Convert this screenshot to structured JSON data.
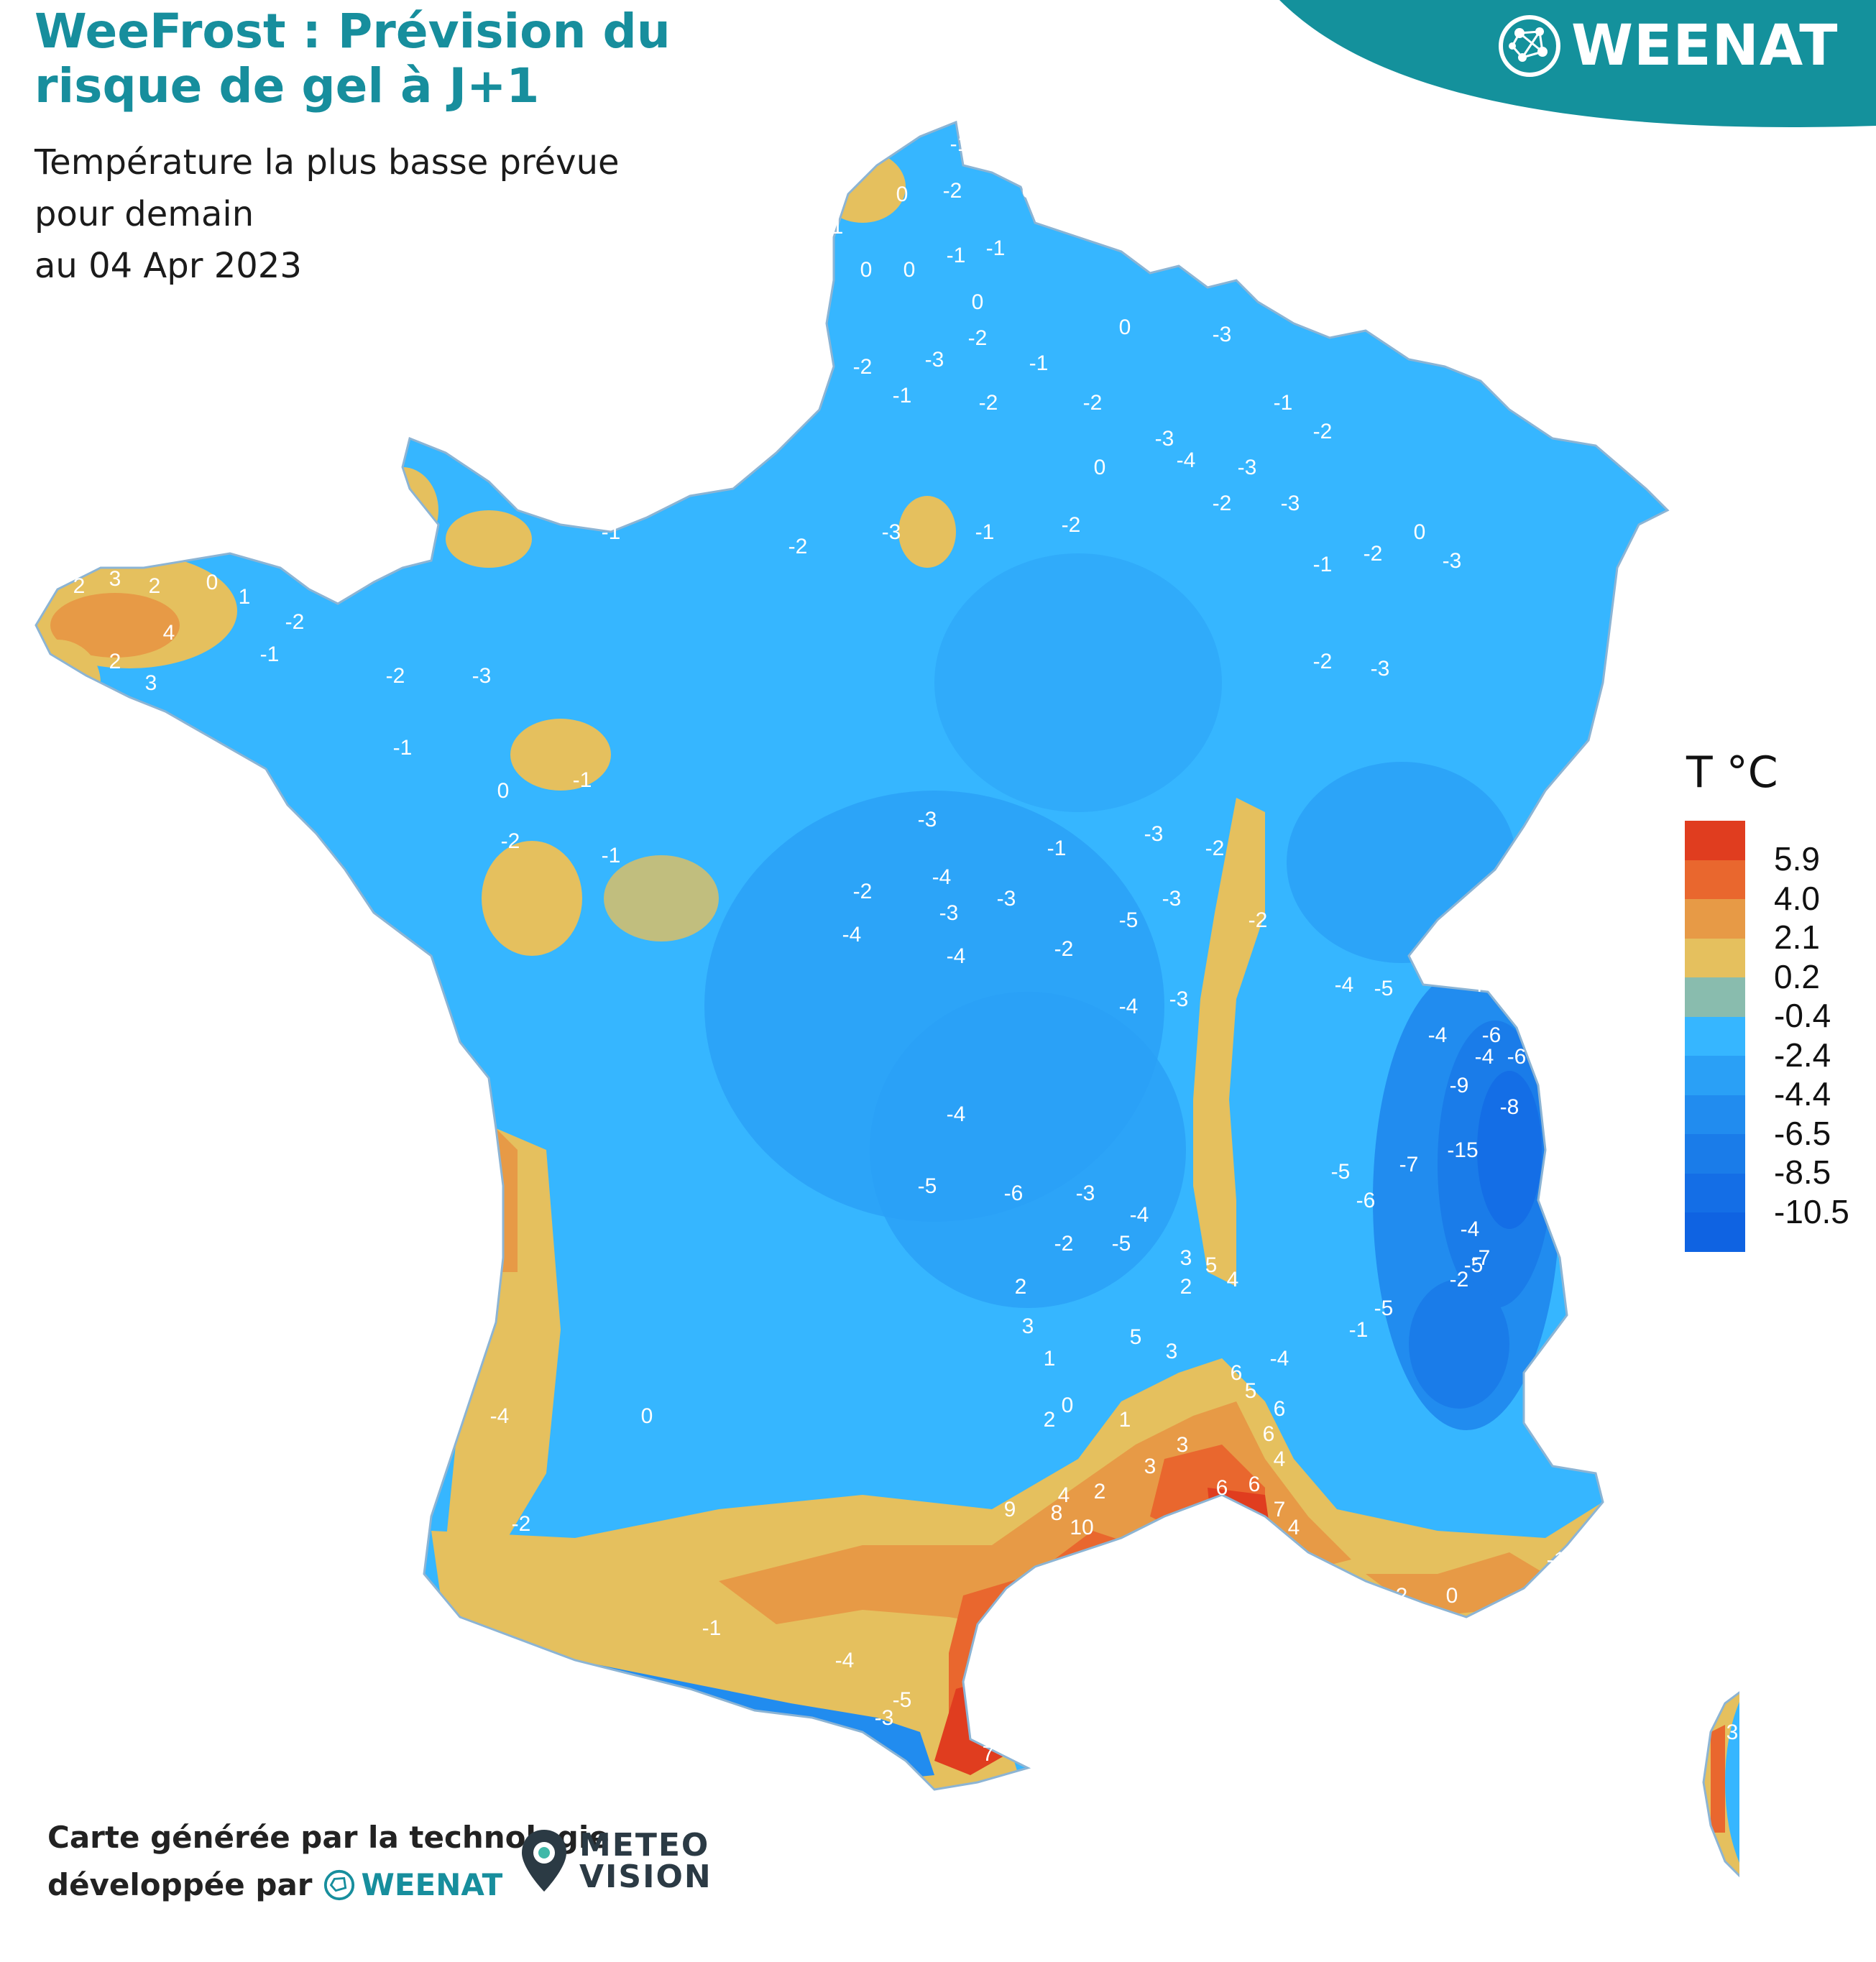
{
  "header": {
    "title_line1": "WeeFrost : Prévision du",
    "title_line2": "risque de gel à J+1",
    "subtitle_line1": "Température la plus basse prévue",
    "subtitle_line2": "pour demain",
    "subtitle_line3": "au 04 Apr 2023"
  },
  "brand": {
    "name": "WEENAT",
    "band_color": "#14919c"
  },
  "legend": {
    "title": "T °C",
    "colors": [
      "#e03d1f",
      "#e9672e",
      "#e79a46",
      "#e5c05e",
      "#89bcae",
      "#36b6ff",
      "#2aa0f6",
      "#218cef",
      "#1a7ce9",
      "#146ee6",
      "#0f63e2"
    ],
    "labels": [
      "5.9",
      "4.0",
      "2.1",
      "0.2",
      "-0.4",
      "-2.4",
      "-4.4",
      "-6.5",
      "-8.5",
      "-10.5"
    ]
  },
  "map": {
    "land_color": "#36b6ff",
    "point_labels": [
      {
        "t": "-1"
      },
      {
        "t": "0"
      },
      {
        "t": "-2"
      },
      {
        "t": "0"
      },
      {
        "t": "-1"
      },
      {
        "t": "0"
      },
      {
        "t": "0"
      },
      {
        "t": "-1"
      },
      {
        "t": "-1"
      },
      {
        "t": "0"
      },
      {
        "t": "-2"
      },
      {
        "t": "-3"
      },
      {
        "t": "-1"
      },
      {
        "t": "0"
      },
      {
        "t": "-3"
      },
      {
        "t": "-2"
      },
      {
        "t": "-1"
      },
      {
        "t": "-2"
      },
      {
        "t": "-2"
      },
      {
        "t": "-3"
      },
      {
        "t": "-1"
      },
      {
        "t": "-2"
      },
      {
        "t": "-3"
      },
      {
        "t": "-4"
      },
      {
        "t": "-3"
      },
      {
        "t": "-2"
      },
      {
        "t": "0"
      },
      {
        "t": "-3"
      },
      {
        "t": "-1"
      },
      {
        "t": "-2"
      },
      {
        "t": "-2"
      },
      {
        "t": "-3"
      },
      {
        "t": "0"
      },
      {
        "t": "-2"
      },
      {
        "t": "-1"
      },
      {
        "t": "-3"
      },
      {
        "t": "-2"
      },
      {
        "t": "-3"
      },
      {
        "t": "-1"
      },
      {
        "t": "2"
      },
      {
        "t": "3"
      },
      {
        "t": "2"
      },
      {
        "t": "0"
      },
      {
        "t": "1"
      },
      {
        "t": "4"
      },
      {
        "t": "2"
      },
      {
        "t": "3"
      },
      {
        "t": "-2"
      },
      {
        "t": "-1"
      },
      {
        "t": "-2"
      },
      {
        "t": "-3"
      },
      {
        "t": "-1"
      },
      {
        "t": "0"
      },
      {
        "t": "-1"
      },
      {
        "t": "-2"
      },
      {
        "t": "-1"
      },
      {
        "t": "-3"
      },
      {
        "t": "-4"
      },
      {
        "t": "-3"
      },
      {
        "t": "-2"
      },
      {
        "t": "-3"
      },
      {
        "t": "-1"
      },
      {
        "t": "-3"
      },
      {
        "t": "-2"
      },
      {
        "t": "-4"
      },
      {
        "t": "-4"
      },
      {
        "t": "-2"
      },
      {
        "t": "-5"
      },
      {
        "t": "-3"
      },
      {
        "t": "-2"
      },
      {
        "t": "-4"
      },
      {
        "t": "-3"
      },
      {
        "t": "-4"
      },
      {
        "t": "-5"
      },
      {
        "t": "-2"
      },
      {
        "t": "-4"
      },
      {
        "t": "-6"
      },
      {
        "t": "-4"
      },
      {
        "t": "-6"
      },
      {
        "t": "-9"
      },
      {
        "t": "-8"
      },
      {
        "t": "-15"
      },
      {
        "t": "-7"
      },
      {
        "t": "-6"
      },
      {
        "t": "-5"
      },
      {
        "t": "-4"
      },
      {
        "t": "-5"
      },
      {
        "t": "-7"
      },
      {
        "t": "-4"
      },
      {
        "t": "-5"
      },
      {
        "t": "-2"
      },
      {
        "t": "-1"
      },
      {
        "t": "-4"
      },
      {
        "t": "-6"
      },
      {
        "t": "-4"
      },
      {
        "t": "-5"
      },
      {
        "t": "-3"
      },
      {
        "t": "-4"
      },
      {
        "t": "-5"
      },
      {
        "t": "-2"
      },
      {
        "t": "3"
      },
      {
        "t": "5"
      },
      {
        "t": "2"
      },
      {
        "t": "4"
      },
      {
        "t": "5"
      },
      {
        "t": "3"
      },
      {
        "t": "6"
      },
      {
        "t": "5"
      },
      {
        "t": "6"
      },
      {
        "t": "6"
      },
      {
        "t": "4"
      },
      {
        "t": "6"
      },
      {
        "t": "6"
      },
      {
        "t": "7"
      },
      {
        "t": "4"
      },
      {
        "t": "3"
      },
      {
        "t": "6"
      },
      {
        "t": "9"
      },
      {
        "t": "10"
      },
      {
        "t": "8"
      },
      {
        "t": "2"
      },
      {
        "t": "3"
      },
      {
        "t": "3"
      },
      {
        "t": "1"
      },
      {
        "t": "2"
      },
      {
        "t": "0"
      },
      {
        "t": "1"
      },
      {
        "t": "3"
      },
      {
        "t": "2"
      },
      {
        "t": "-4"
      },
      {
        "t": "0"
      },
      {
        "t": "-2"
      },
      {
        "t": "-1"
      },
      {
        "t": "-4"
      },
      {
        "t": "-5"
      },
      {
        "t": "-3"
      },
      {
        "t": "2"
      },
      {
        "t": "4"
      },
      {
        "t": "5"
      },
      {
        "t": "7"
      },
      {
        "t": "4"
      },
      {
        "t": "2"
      },
      {
        "t": "0"
      },
      {
        "t": "-1"
      },
      {
        "t": "8"
      },
      {
        "t": "0"
      },
      {
        "t": "3"
      },
      {
        "t": "0"
      },
      {
        "t": "6"
      },
      {
        "t": "4"
      },
      {
        "t": "7"
      }
    ]
  },
  "footer": {
    "line1": "Carte générée par la technologie",
    "line2": "développée par",
    "weenat": "WEENAT",
    "meteovision_line1": "METEO",
    "meteovision_line2": "VISION"
  }
}
